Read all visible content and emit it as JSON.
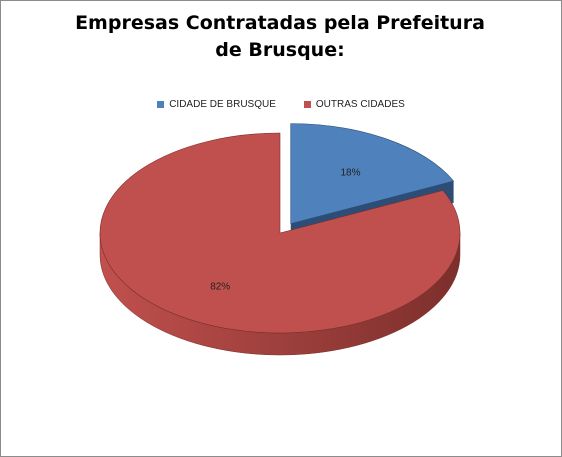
{
  "chart_data": {
    "type": "pie",
    "title": "Empresas  Contratadas  pela Prefeitura de Brusque:",
    "categories": [
      "CIDADE DE BRUSQUE",
      "OUTRAS CIDADES"
    ],
    "values": [
      18,
      82
    ],
    "value_labels": [
      "18%",
      "82%"
    ],
    "colors": [
      "#4f81bd",
      "#c0504d"
    ],
    "side_colors": [
      "#2c4d75",
      "#7c2f2c"
    ],
    "legend_position": "top",
    "exploded_slice": "CIDADE DE BRUSQUE"
  }
}
